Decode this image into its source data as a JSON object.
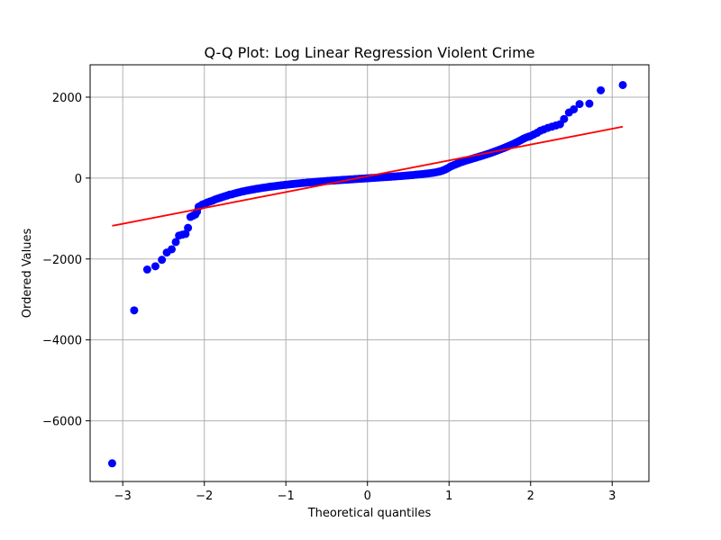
{
  "chart_data": {
    "type": "scatter",
    "title": "Q-Q Plot: Log Linear Regression Violent Crime",
    "xlabel": "Theoretical quantiles",
    "ylabel": "Ordered Values",
    "xlim": [
      -3.4,
      3.45
    ],
    "ylim": [
      -7500,
      2800
    ],
    "grid": true,
    "x_ticks": [
      -3,
      -2,
      -1,
      0,
      1,
      2,
      3
    ],
    "x_tick_labels": [
      "−3",
      "−2",
      "−1",
      "0",
      "1",
      "2",
      "3"
    ],
    "y_ticks": [
      -6000,
      -4000,
      -2000,
      0,
      2000
    ],
    "y_tick_labels": [
      "−6000",
      "−4000",
      "−2000",
      "0",
      "2000"
    ],
    "marker_color": "#0000ff",
    "line_color": "#ff0000",
    "fit_line": {
      "x": [
        -3.13,
        3.13
      ],
      "y": [
        -1180,
        1270
      ]
    },
    "points": [
      [
        -3.13,
        -7050
      ],
      [
        -2.86,
        -3270
      ],
      [
        -2.7,
        -2260
      ],
      [
        -2.6,
        -2180
      ],
      [
        -2.52,
        -2020
      ],
      [
        -2.46,
        -1840
      ],
      [
        -2.4,
        -1760
      ],
      [
        -2.35,
        -1580
      ],
      [
        -2.31,
        -1420
      ],
      [
        -2.27,
        -1400
      ],
      [
        -2.23,
        -1380
      ],
      [
        -2.2,
        -1230
      ],
      [
        -2.17,
        -960
      ],
      [
        -2.14,
        -930
      ],
      [
        -2.11,
        -900
      ],
      [
        -2.09,
        -830
      ],
      [
        -2.07,
        -710
      ],
      [
        -2.04,
        -680
      ],
      [
        -2.02,
        -650
      ],
      [
        -1.99,
        -630
      ],
      [
        -1.96,
        -600
      ],
      [
        -1.93,
        -580
      ],
      [
        -1.9,
        -560
      ],
      [
        -1.87,
        -530
      ],
      [
        -1.84,
        -510
      ],
      [
        -1.81,
        -490
      ],
      [
        -1.78,
        -470
      ],
      [
        -1.75,
        -450
      ],
      [
        -1.72,
        -430
      ],
      [
        -1.69,
        -410
      ],
      [
        -1.66,
        -400
      ],
      [
        -1.63,
        -380
      ],
      [
        -1.6,
        -365
      ],
      [
        -1.57,
        -350
      ],
      [
        -1.54,
        -335
      ],
      [
        -1.51,
        -322
      ],
      [
        -1.48,
        -310
      ],
      [
        -1.45,
        -298
      ],
      [
        -1.42,
        -287
      ],
      [
        -1.39,
        -276
      ],
      [
        -1.36,
        -265
      ],
      [
        -1.33,
        -255
      ],
      [
        -1.3,
        -245
      ],
      [
        -1.27,
        -236
      ],
      [
        -1.24,
        -227
      ],
      [
        -1.21,
        -218
      ],
      [
        -1.18,
        -210
      ],
      [
        -1.15,
        -202
      ],
      [
        -1.12,
        -194
      ],
      [
        -1.09,
        -186
      ],
      [
        -1.06,
        -179
      ],
      [
        -1.03,
        -172
      ],
      [
        -1.0,
        -165
      ],
      [
        -0.97,
        -158
      ],
      [
        -0.94,
        -151
      ],
      [
        -0.91,
        -145
      ],
      [
        -0.88,
        -139
      ],
      [
        -0.85,
        -133
      ],
      [
        -0.82,
        -127
      ],
      [
        -0.79,
        -121
      ],
      [
        -0.76,
        -116
      ],
      [
        -0.73,
        -110
      ],
      [
        -0.7,
        -105
      ],
      [
        -0.67,
        -100
      ],
      [
        -0.64,
        -95
      ],
      [
        -0.61,
        -90
      ],
      [
        -0.58,
        -85
      ],
      [
        -0.55,
        -80
      ],
      [
        -0.52,
        -76
      ],
      [
        -0.49,
        -71
      ],
      [
        -0.46,
        -67
      ],
      [
        -0.43,
        -62
      ],
      [
        -0.4,
        -58
      ],
      [
        -0.37,
        -54
      ],
      [
        -0.34,
        -50
      ],
      [
        -0.31,
        -46
      ],
      [
        -0.28,
        -42
      ],
      [
        -0.25,
        -38
      ],
      [
        -0.22,
        -34
      ],
      [
        -0.19,
        -30
      ],
      [
        -0.16,
        -26
      ],
      [
        -0.13,
        -22
      ],
      [
        -0.1,
        -18
      ],
      [
        -0.07,
        -14
      ],
      [
        -0.04,
        -10
      ],
      [
        -0.01,
        -6
      ],
      [
        0.02,
        -2
      ],
      [
        0.05,
        2
      ],
      [
        0.08,
        6
      ],
      [
        0.11,
        10
      ],
      [
        0.14,
        14
      ],
      [
        0.17,
        18
      ],
      [
        0.2,
        22
      ],
      [
        0.23,
        26
      ],
      [
        0.26,
        30
      ],
      [
        0.29,
        34
      ],
      [
        0.32,
        38
      ],
      [
        0.35,
        42
      ],
      [
        0.38,
        47
      ],
      [
        0.41,
        51
      ],
      [
        0.44,
        56
      ],
      [
        0.47,
        61
      ],
      [
        0.5,
        66
      ],
      [
        0.53,
        71
      ],
      [
        0.56,
        76
      ],
      [
        0.59,
        82
      ],
      [
        0.62,
        88
      ],
      [
        0.65,
        94
      ],
      [
        0.68,
        100
      ],
      [
        0.71,
        107
      ],
      [
        0.74,
        114
      ],
      [
        0.77,
        121
      ],
      [
        0.8,
        130
      ],
      [
        0.83,
        140
      ],
      [
        0.86,
        152
      ],
      [
        0.89,
        166
      ],
      [
        0.92,
        185
      ],
      [
        0.95,
        210
      ],
      [
        0.98,
        240
      ],
      [
        1.01,
        275
      ],
      [
        1.04,
        305
      ],
      [
        1.07,
        330
      ],
      [
        1.1,
        355
      ],
      [
        1.13,
        378
      ],
      [
        1.16,
        400
      ],
      [
        1.19,
        420
      ],
      [
        1.22,
        440
      ],
      [
        1.25,
        458
      ],
      [
        1.28,
        476
      ],
      [
        1.31,
        494
      ],
      [
        1.34,
        512
      ],
      [
        1.37,
        530
      ],
      [
        1.4,
        548
      ],
      [
        1.43,
        567
      ],
      [
        1.46,
        587
      ],
      [
        1.49,
        607
      ],
      [
        1.52,
        628
      ],
      [
        1.55,
        650
      ],
      [
        1.58,
        672
      ],
      [
        1.61,
        695
      ],
      [
        1.64,
        718
      ],
      [
        1.67,
        742
      ],
      [
        1.7,
        766
      ],
      [
        1.73,
        792
      ],
      [
        1.76,
        818
      ],
      [
        1.79,
        846
      ],
      [
        1.82,
        876
      ],
      [
        1.85,
        906
      ],
      [
        1.88,
        938
      ],
      [
        1.91,
        970
      ],
      [
        1.94,
        998
      ],
      [
        1.97,
        1020
      ],
      [
        2.0,
        1040
      ],
      [
        2.04,
        1080
      ],
      [
        2.08,
        1120
      ],
      [
        2.12,
        1170
      ],
      [
        2.16,
        1200
      ],
      [
        2.21,
        1240
      ],
      [
        2.26,
        1270
      ],
      [
        2.31,
        1300
      ],
      [
        2.36,
        1330
      ],
      [
        2.41,
        1460
      ],
      [
        2.47,
        1620
      ],
      [
        2.53,
        1700
      ],
      [
        2.6,
        1830
      ],
      [
        2.72,
        1840
      ],
      [
        2.86,
        2170
      ],
      [
        3.13,
        2300
      ]
    ]
  }
}
